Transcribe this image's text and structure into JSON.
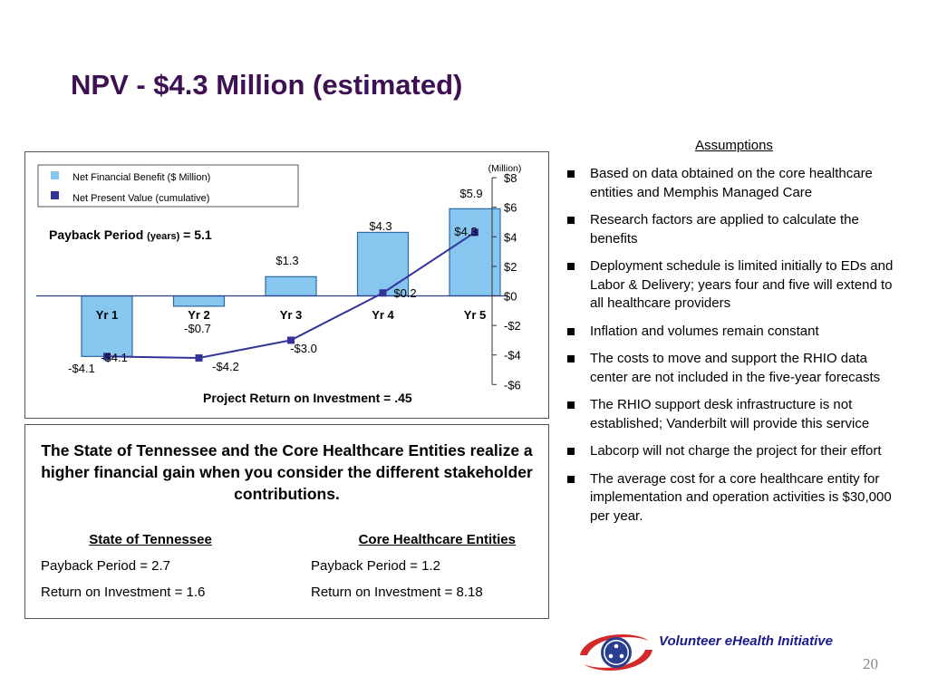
{
  "title": "NPV - $4.3 Million (estimated)",
  "chart": {
    "legend": [
      "Net Financial Benefit ($ Million)",
      "Net Present Value (cumulative)"
    ],
    "payback_label": "Payback Period",
    "payback_units": "(years)",
    "payback_value": "= 5.1",
    "roi_label": "Project Return on Investment =  .45",
    "unit_label": "(Million)",
    "bar_labels": [
      "-$4.1",
      "-$0.7",
      "$1.3",
      "$4.3",
      "$5.9"
    ],
    "line_labels": [
      "-$4.1",
      "-$4.2",
      "-$3.0",
      "$0.2",
      "$4.3"
    ],
    "tick_labels": [
      "$8",
      "$6",
      "$4",
      "$2",
      "$0",
      "-$2",
      "-$4",
      "-$6"
    ]
  },
  "chart_data": {
    "type": "bar",
    "categories": [
      "Yr 1",
      "Yr 2",
      "Yr 3",
      "Yr 4",
      "Yr 5"
    ],
    "series": [
      {
        "name": "Net Financial Benefit ($ Million)",
        "type": "bar",
        "values": [
          -4.1,
          -0.7,
          1.3,
          4.3,
          5.9
        ],
        "color": "#87c6ef"
      },
      {
        "name": "Net Present Value (cumulative)",
        "type": "line",
        "values": [
          -4.1,
          -4.2,
          -3.0,
          0.2,
          4.3
        ],
        "color": "#33339a"
      }
    ],
    "ylabel": "(Million)",
    "ylim": [
      -6,
      8
    ],
    "yticks": [
      8,
      6,
      4,
      2,
      0,
      -2,
      -4,
      -6
    ],
    "y_axis_side": "right",
    "legend_position": "top-left"
  },
  "lower": {
    "heading": "The State of Tennessee and the Core Healthcare Entities realize a higher financial gain when you consider the different stakeholder contributions.",
    "col1": {
      "title": "State of Tennessee",
      "payback": "Payback Period = 2.7",
      "roi": "Return on Investment =  1.6"
    },
    "col2": {
      "title": "Core Healthcare Entities",
      "payback": "Payback Period = 1.2",
      "roi": "Return on Investment =  8.18"
    }
  },
  "assumptions": {
    "title": "Assumptions",
    "items": [
      "Based on data obtained on the core healthcare entities and Memphis Managed Care",
      "Research factors are applied to calculate the benefits",
      "Deployment schedule is limited initially to EDs and Labor & Delivery; years four and five will extend to all healthcare providers",
      "Inflation and volumes remain constant",
      "The costs to move and support the RHIO data center are not included in the five-year forecasts",
      "The RHIO support desk infrastructure is not established; Vanderbilt will provide this service",
      "Labcorp will not charge the project for their effort",
      "The average cost for a core healthcare entity for implementation and operation activities is $30,000 per year."
    ]
  },
  "footer": {
    "org": "Volunteer eHealth Initiative",
    "page": "20"
  },
  "colors": {
    "title": "#3d1054",
    "bar": "#87c6ef",
    "line": "#33339a",
    "org_text": "#1a1a8c"
  }
}
